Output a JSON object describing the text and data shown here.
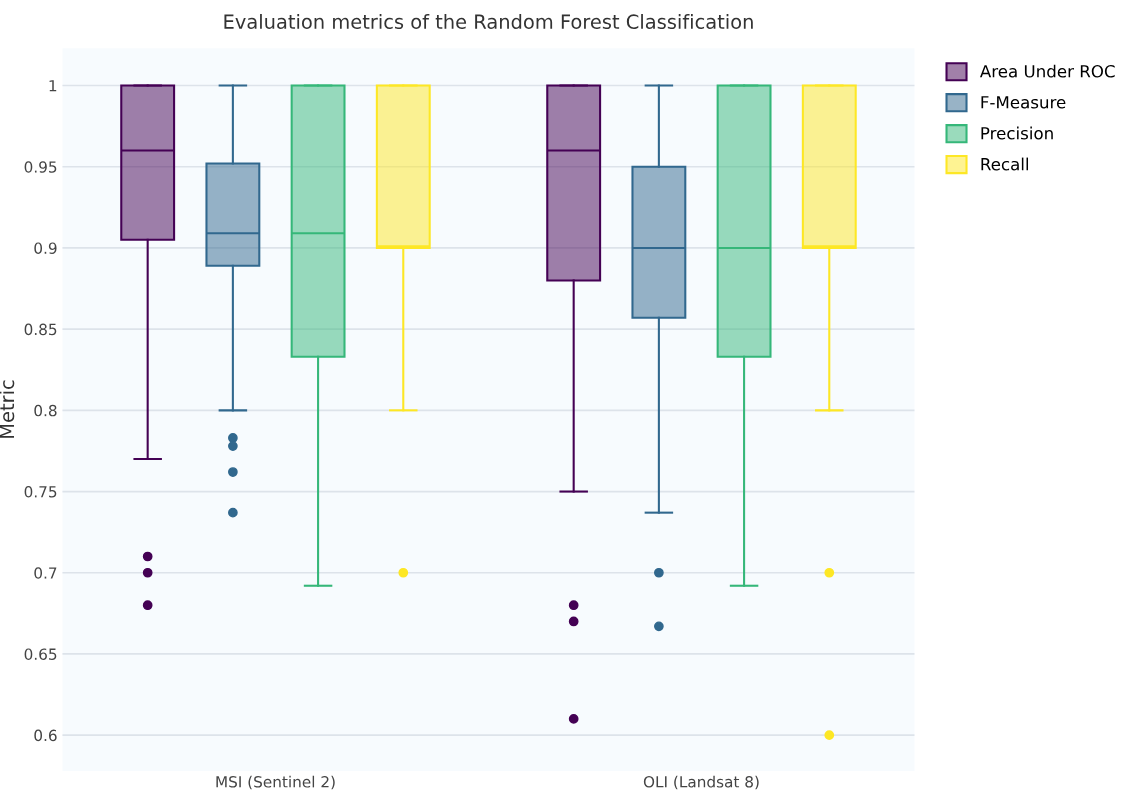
{
  "chart_data": {
    "type": "box",
    "title": "Evaluation metrics of the Random Forest Classification",
    "ylabel": "Metric",
    "categories": [
      "MSI (Sentinel 2)",
      "OLI (Landsat 8)"
    ],
    "series": [
      {
        "name": "Area Under ROC",
        "color": "#440154",
        "boxes": [
          {
            "low": 0.77,
            "q1": 0.905,
            "median": 0.96,
            "q3": 1,
            "high": 1,
            "outliers": [
              0.71,
              0.7,
              0.68
            ]
          },
          {
            "low": 0.75,
            "q1": 0.88,
            "median": 0.96,
            "q3": 1,
            "high": 1,
            "outliers": [
              0.68,
              0.67,
              0.61
            ]
          }
        ]
      },
      {
        "name": "F-Measure",
        "color": "#31688e",
        "boxes": [
          {
            "low": 0.8,
            "q1": 0.889,
            "median": 0.909,
            "q3": 0.952,
            "high": 1,
            "outliers": [
              0.783,
              0.778,
              0.762,
              0.737
            ]
          },
          {
            "low": 0.737,
            "q1": 0.857,
            "median": 0.9,
            "q3": 0.95,
            "high": 1,
            "outliers": [
              0.7,
              0.667
            ]
          }
        ]
      },
      {
        "name": "Precision",
        "color": "#35b779",
        "boxes": [
          {
            "low": 0.692,
            "q1": 0.833,
            "median": 0.909,
            "q3": 1,
            "high": 1
          },
          {
            "low": 0.692,
            "q1": 0.833,
            "median": 0.9,
            "q3": 1,
            "high": 1
          }
        ]
      },
      {
        "name": "Recall",
        "color": "#fde725",
        "boxes": [
          {
            "low": 0.8,
            "q1": 0.9,
            "median": 0.901,
            "q3": 1,
            "high": 1,
            "outliers": [
              0.7
            ]
          },
          {
            "low": 0.8,
            "q1": 0.9,
            "median": 0.901,
            "q3": 1,
            "high": 1,
            "outliers": [
              0.7,
              0.6
            ]
          }
        ]
      }
    ],
    "ylim": [
      0.578,
      1.023
    ],
    "yticks": [
      0.6,
      0.65,
      0.7,
      0.75,
      0.8,
      0.85,
      0.9,
      0.95,
      1
    ],
    "grid": "y",
    "legend": "top right"
  }
}
